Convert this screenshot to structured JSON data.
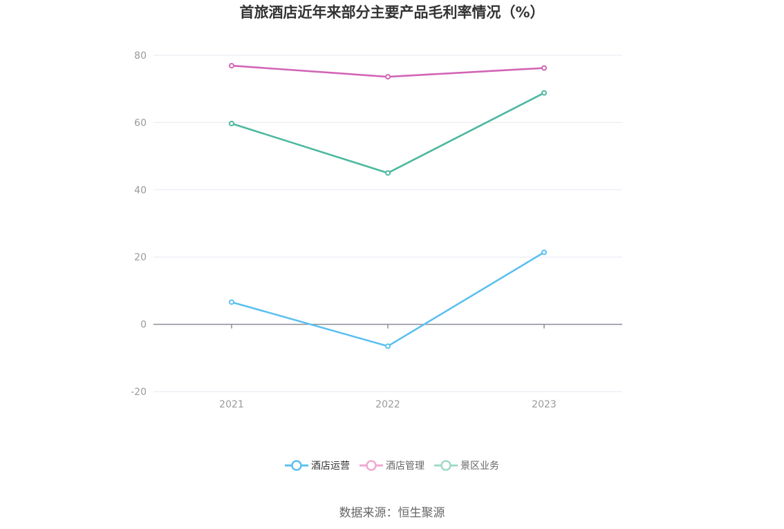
{
  "chart_data": {
    "type": "line",
    "title": "首旅酒店近年来部分主要产品毛利率情况（%）",
    "categories": [
      "2021",
      "2022",
      "2023"
    ],
    "ylim": [
      -20,
      80
    ],
    "yticks": [
      -20,
      0,
      20,
      40,
      60,
      80
    ],
    "grid": true,
    "legend_position": "bottom",
    "series": [
      {
        "name": "酒店运营",
        "color": "#5bc0f0",
        "values": [
          6.6,
          -6.5,
          21.4
        ]
      },
      {
        "name": "酒店管理",
        "color": "#d264b6",
        "values": [
          76.9,
          73.6,
          76.2
        ]
      },
      {
        "name": "景区业务",
        "color": "#4cb89e",
        "values": [
          59.7,
          45.0,
          68.8
        ]
      }
    ]
  },
  "legend": [
    {
      "label": "酒店运营",
      "color": "#5bc0f0"
    },
    {
      "label": "酒店管理",
      "color": "#f0a8d0"
    },
    {
      "label": "景区业务",
      "color": "#9fdac8"
    }
  ],
  "source": "数据来源：恒生聚源"
}
